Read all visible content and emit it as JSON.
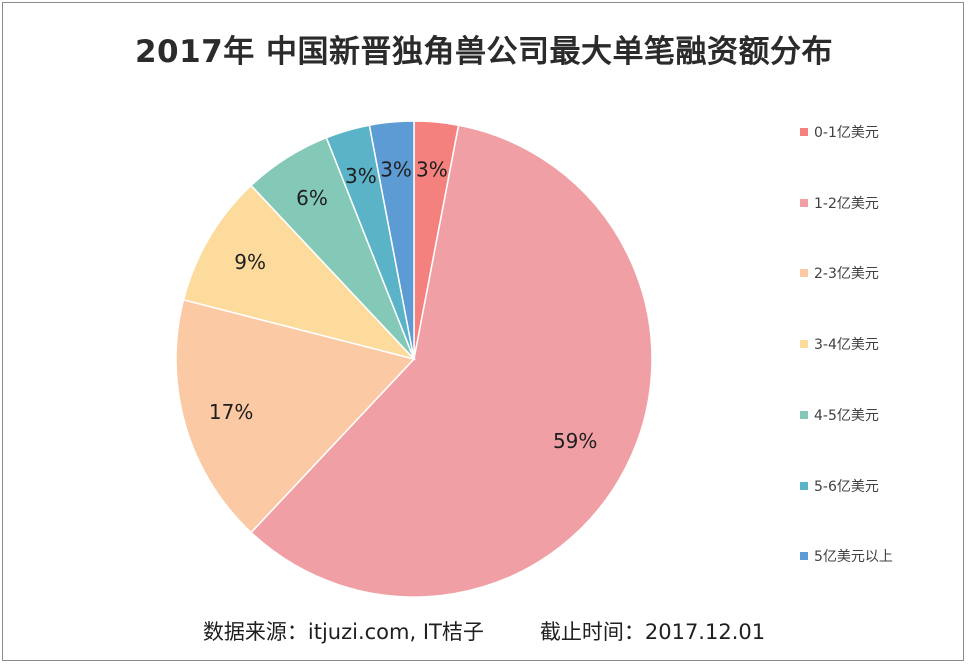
{
  "chart_data": {
    "type": "pie",
    "title": "2017年 中国新晋独角兽公司最大单笔融资额分布",
    "categories": [
      "0-1亿美元",
      "1-2亿美元",
      "2-3亿美元",
      "3-4亿美元",
      "4-5亿美元",
      "5-6亿美元",
      "5亿美元以上"
    ],
    "values": [
      3,
      59,
      17,
      9,
      6,
      3,
      3
    ],
    "value_labels": [
      "3%",
      "59%",
      "17%",
      "9%",
      "6%",
      "3%",
      "3%"
    ],
    "colors": [
      "#f4817d",
      "#f0a0a5",
      "#fbc9a3",
      "#fcdb9c",
      "#84c9b8",
      "#5bb3c7",
      "#5c9bd3"
    ],
    "legend_position": "right"
  },
  "footer": {
    "source": "数据来源：itjuzi.com, IT桔子",
    "date": "截止时间：2017.12.01"
  }
}
